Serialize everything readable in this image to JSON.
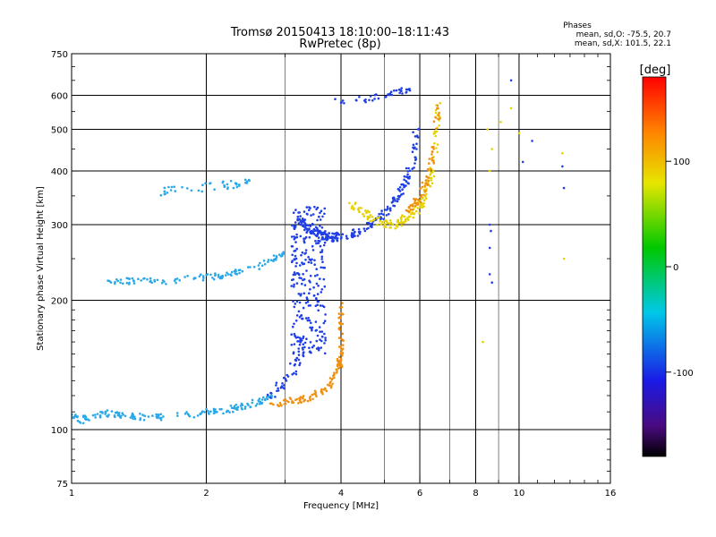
{
  "chart_data": {
    "type": "scatter",
    "title": "Tromsø 20150413 18:10:00–18:11:43",
    "subtitle": "RwPretec (8p)",
    "annotation": {
      "heading": "Phases",
      "line1": "mean, sd,O: -75.5, 20.7",
      "line2": "mean, sd,X: 101.5, 22.1"
    },
    "xlabel": "Frequency [MHz]",
    "ylabel": "Stationary phase Virtual Height [km]",
    "x_scale": "log",
    "y_scale": "log",
    "xlim": [
      1,
      16
    ],
    "ylim": [
      75,
      750
    ],
    "x_ticks": [
      {
        "value": 1,
        "label": "1"
      },
      {
        "value": 2,
        "label": "2"
      },
      {
        "value": 4,
        "label": "4"
      },
      {
        "value": 6,
        "label": "6"
      },
      {
        "value": 8,
        "label": "8"
      },
      {
        "value": 10,
        "label": "10"
      },
      {
        "value": 16,
        "label": "16"
      }
    ],
    "y_ticks": [
      {
        "value": 75,
        "label": "75"
      },
      {
        "value": 100,
        "label": "100"
      },
      {
        "value": 200,
        "label": "200"
      },
      {
        "value": 300,
        "label": "300"
      },
      {
        "value": 400,
        "label": "400"
      },
      {
        "value": 500,
        "label": "500"
      },
      {
        "value": 600,
        "label": "600"
      },
      {
        "value": 750,
        "label": "750"
      }
    ],
    "x_major_grid": [
      2,
      4,
      6,
      8,
      10
    ],
    "x_minor_grid": [
      3,
      5,
      7,
      9
    ],
    "y_grid": [
      100,
      200,
      300,
      400,
      500,
      600
    ],
    "grid": true,
    "colorbar": {
      "label": "[deg]",
      "range": [
        -180,
        180
      ],
      "ticks": [
        {
          "value": 100,
          "label": "100"
        },
        {
          "value": 0,
          "label": "0"
        },
        {
          "value": -100,
          "label": "-100"
        }
      ]
    },
    "point_colors": {
      "ordinary": "#1f3fe6",
      "extraordinary": "#f09010",
      "lowF": "#28a8e8",
      "yellow": "#e6d200",
      "green": "#48d030"
    },
    "traces": [
      {
        "name": "",
        "color_key": "lowF",
        "kind": "curve",
        "x": [
          1.0,
          1.05,
          1.1,
          1.2,
          1.3,
          1.45,
          1.6,
          1.8,
          2.0,
          2.2,
          2.4,
          2.6,
          2.8
        ],
        "y": [
          108,
          105,
          107,
          109,
          108,
          107,
          107,
          108,
          110,
          111,
          113,
          116,
          119
        ],
        "jitter": 0.012,
        "count": 170
      },
      {
        "name": "",
        "color_key": "extraordinary",
        "kind": "curve",
        "x": [
          2.8,
          3.0,
          3.2,
          3.4,
          3.6,
          3.8,
          3.95,
          4.0
        ],
        "y": [
          115,
          116,
          117,
          119,
          122,
          128,
          138,
          150
        ],
        "jitter": 0.012,
        "count": 90
      },
      {
        "name": "",
        "color_key": "extraordinary",
        "kind": "band",
        "x": [
          3.95,
          4.05
        ],
        "y": [
          140,
          200
        ],
        "jitter": 0.01,
        "count": 40
      },
      {
        "name": "",
        "color_key": "lowF",
        "kind": "curve",
        "x": [
          1.2,
          1.4,
          1.6,
          1.8,
          2.0,
          2.2,
          2.4,
          2.6,
          2.8,
          3.0
        ],
        "y": [
          223,
          221,
          222,
          224,
          226,
          229,
          234,
          240,
          248,
          258
        ],
        "jitter": 0.012,
        "count": 110
      },
      {
        "name": "",
        "color_key": "ordinary",
        "kind": "curve",
        "x": [
          3.2,
          3.4,
          3.6,
          3.8,
          4.0,
          4.4,
          4.8,
          5.2,
          5.5,
          5.8,
          5.9
        ],
        "y": [
          310,
          292,
          284,
          280,
          282,
          290,
          305,
          330,
          365,
          420,
          500
        ],
        "jitter": 0.015,
        "count": 220
      },
      {
        "name": "",
        "color_key": "ordinary",
        "kind": "band",
        "x": [
          3.1,
          3.7
        ],
        "y": [
          150,
          330
        ],
        "jitter": 0.02,
        "count": 260
      },
      {
        "name": "",
        "color_key": "ordinary",
        "kind": "curve",
        "x": [
          2.7,
          2.9,
          3.1,
          3.2,
          3.3
        ],
        "y": [
          118,
          125,
          135,
          145,
          160
        ],
        "jitter": 0.02,
        "count": 50
      },
      {
        "name": "",
        "color_key": "ordinary",
        "kind": "curve",
        "x": [
          3.8,
          4.2,
          4.6,
          5.0,
          5.4,
          5.7
        ],
        "y": [
          578,
          582,
          590,
          600,
          610,
          628
        ],
        "jitter": 0.012,
        "count": 40
      },
      {
        "name": "",
        "color_key": "yellow",
        "kind": "curve",
        "x": [
          4.2,
          4.5,
          4.8,
          5.2,
          5.6,
          6.0,
          6.3,
          6.5,
          6.6
        ],
        "y": [
          335,
          320,
          305,
          300,
          310,
          330,
          370,
          450,
          580
        ],
        "jitter": 0.015,
        "count": 160
      },
      {
        "name": "",
        "color_key": "extraordinary",
        "kind": "curve",
        "x": [
          5.6,
          6.0,
          6.3,
          6.5,
          6.6
        ],
        "y": [
          320,
          345,
          390,
          470,
          600
        ],
        "jitter": 0.015,
        "count": 70
      },
      {
        "name": "",
        "color_key": "lowF",
        "kind": "curve",
        "x": [
          1.5,
          1.7,
          1.9,
          2.1,
          2.3,
          2.5
        ],
        "y": [
          355,
          360,
          365,
          370,
          372,
          375
        ],
        "jitter": 0.015,
        "count": 45
      },
      {
        "name": "",
        "color_key": "ordinary",
        "kind": "scatter",
        "x": [
          8.6,
          8.65,
          8.6,
          8.7,
          8.6,
          9.6,
          10.2,
          10.7,
          12.5,
          12.6
        ],
        "y": [
          300,
          290,
          265,
          220,
          230,
          650,
          420,
          470,
          410,
          365
        ],
        "jitter": 0.01,
        "count": 10
      },
      {
        "name": "",
        "color_key": "yellow",
        "kind": "scatter",
        "x": [
          8.5,
          8.7,
          8.6,
          9.1,
          9.6,
          10.0,
          12.5,
          12.6,
          8.3
        ],
        "y": [
          500,
          450,
          400,
          520,
          560,
          490,
          440,
          250,
          160
        ],
        "jitter": 0.01,
        "count": 9
      }
    ]
  }
}
